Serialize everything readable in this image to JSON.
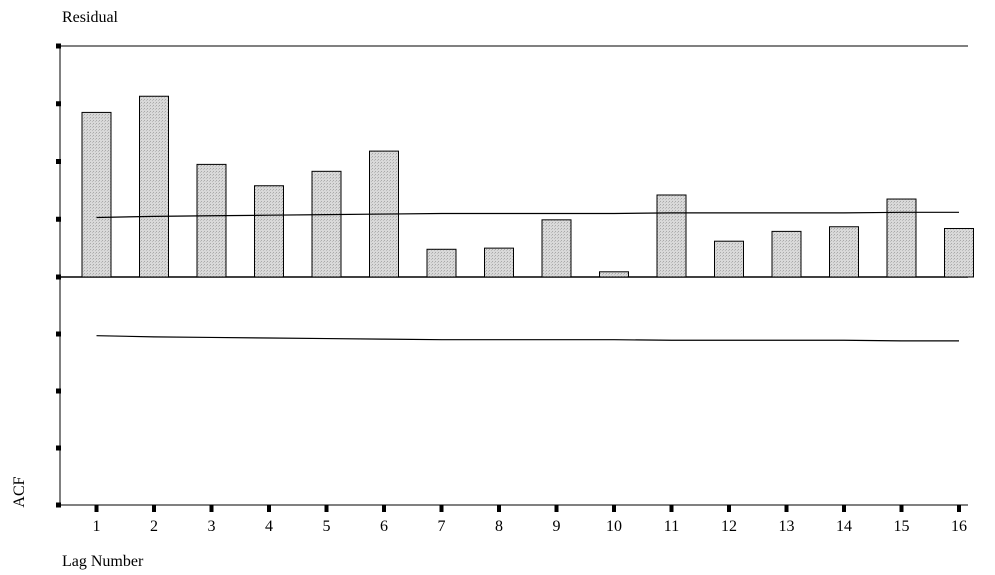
{
  "chart_data": {
    "type": "bar",
    "title": "Residual",
    "xlabel": "Lag Number",
    "ylabel": "ACF",
    "categories": [
      "1",
      "2",
      "3",
      "4",
      "5",
      "6",
      "7",
      "8",
      "9",
      "10",
      "11",
      "12",
      "13",
      "14",
      "15",
      "16"
    ],
    "values": [
      0.285,
      0.313,
      0.195,
      0.158,
      0.183,
      0.218,
      0.048,
      0.05,
      0.099,
      0.009,
      0.142,
      0.062,
      0.079,
      0.087,
      0.135,
      0.084
    ],
    "confidence_upper": [
      0.103,
      0.105,
      0.106,
      0.107,
      0.108,
      0.109,
      0.11,
      0.11,
      0.11,
      0.11,
      0.111,
      0.111,
      0.111,
      0.111,
      0.112,
      0.112
    ],
    "confidence_lower": [
      -0.103,
      -0.105,
      -0.106,
      -0.107,
      -0.108,
      -0.109,
      -0.11,
      -0.11,
      -0.11,
      -0.11,
      -0.111,
      -0.111,
      -0.111,
      -0.111,
      -0.112,
      -0.112
    ],
    "ylim": [
      -0.4,
      0.4
    ],
    "y_ticks": [
      -0.4,
      -0.3,
      -0.2,
      -0.1,
      0,
      0.1,
      0.2,
      0.3,
      0.4
    ],
    "grid": false,
    "y_tick_labels_shown": false,
    "colors": {
      "bar_fill": "#d3d3d3",
      "bar_stroke": "#000000",
      "line": "#000000"
    }
  }
}
